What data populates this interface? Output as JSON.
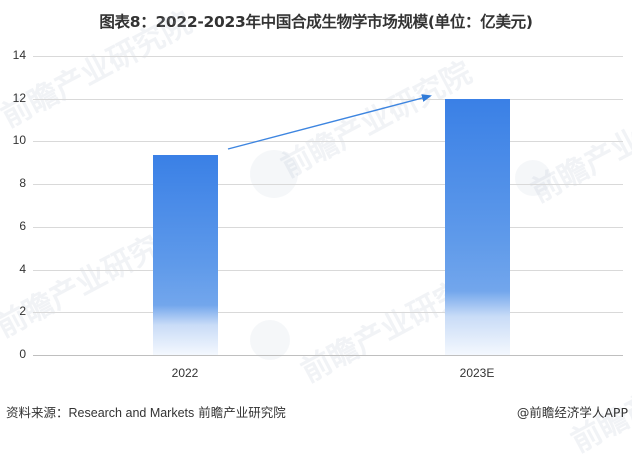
{
  "title": "图表8：2022-2023年中国合成生物学市场规模(单位：亿美元)",
  "chart_data": {
    "type": "bar",
    "title": "图表8：2022-2023年中国合成生物学市场规模(单位：亿美元)",
    "categories": [
      "2022",
      "2023E"
    ],
    "values": [
      9.36,
      12
    ],
    "xlabel": "",
    "ylabel": "亿美元",
    "ylim": [
      0,
      14
    ],
    "yticks": [
      "0",
      "2",
      "4",
      "6",
      "8",
      "10",
      "12",
      "14"
    ],
    "grid": true,
    "legend": null,
    "annotations": [
      "growth arrow from 2022 bar to 2023E bar"
    ],
    "bar_color": "#3a7fe4"
  },
  "footer": {
    "source_label": "资料来源：",
    "source_en": "Research and Markets",
    "source_cn": "前瞻产业研究院",
    "credit": "@前瞻经济学人APP"
  },
  "watermark": {
    "text": "前瞻产业研究院"
  }
}
